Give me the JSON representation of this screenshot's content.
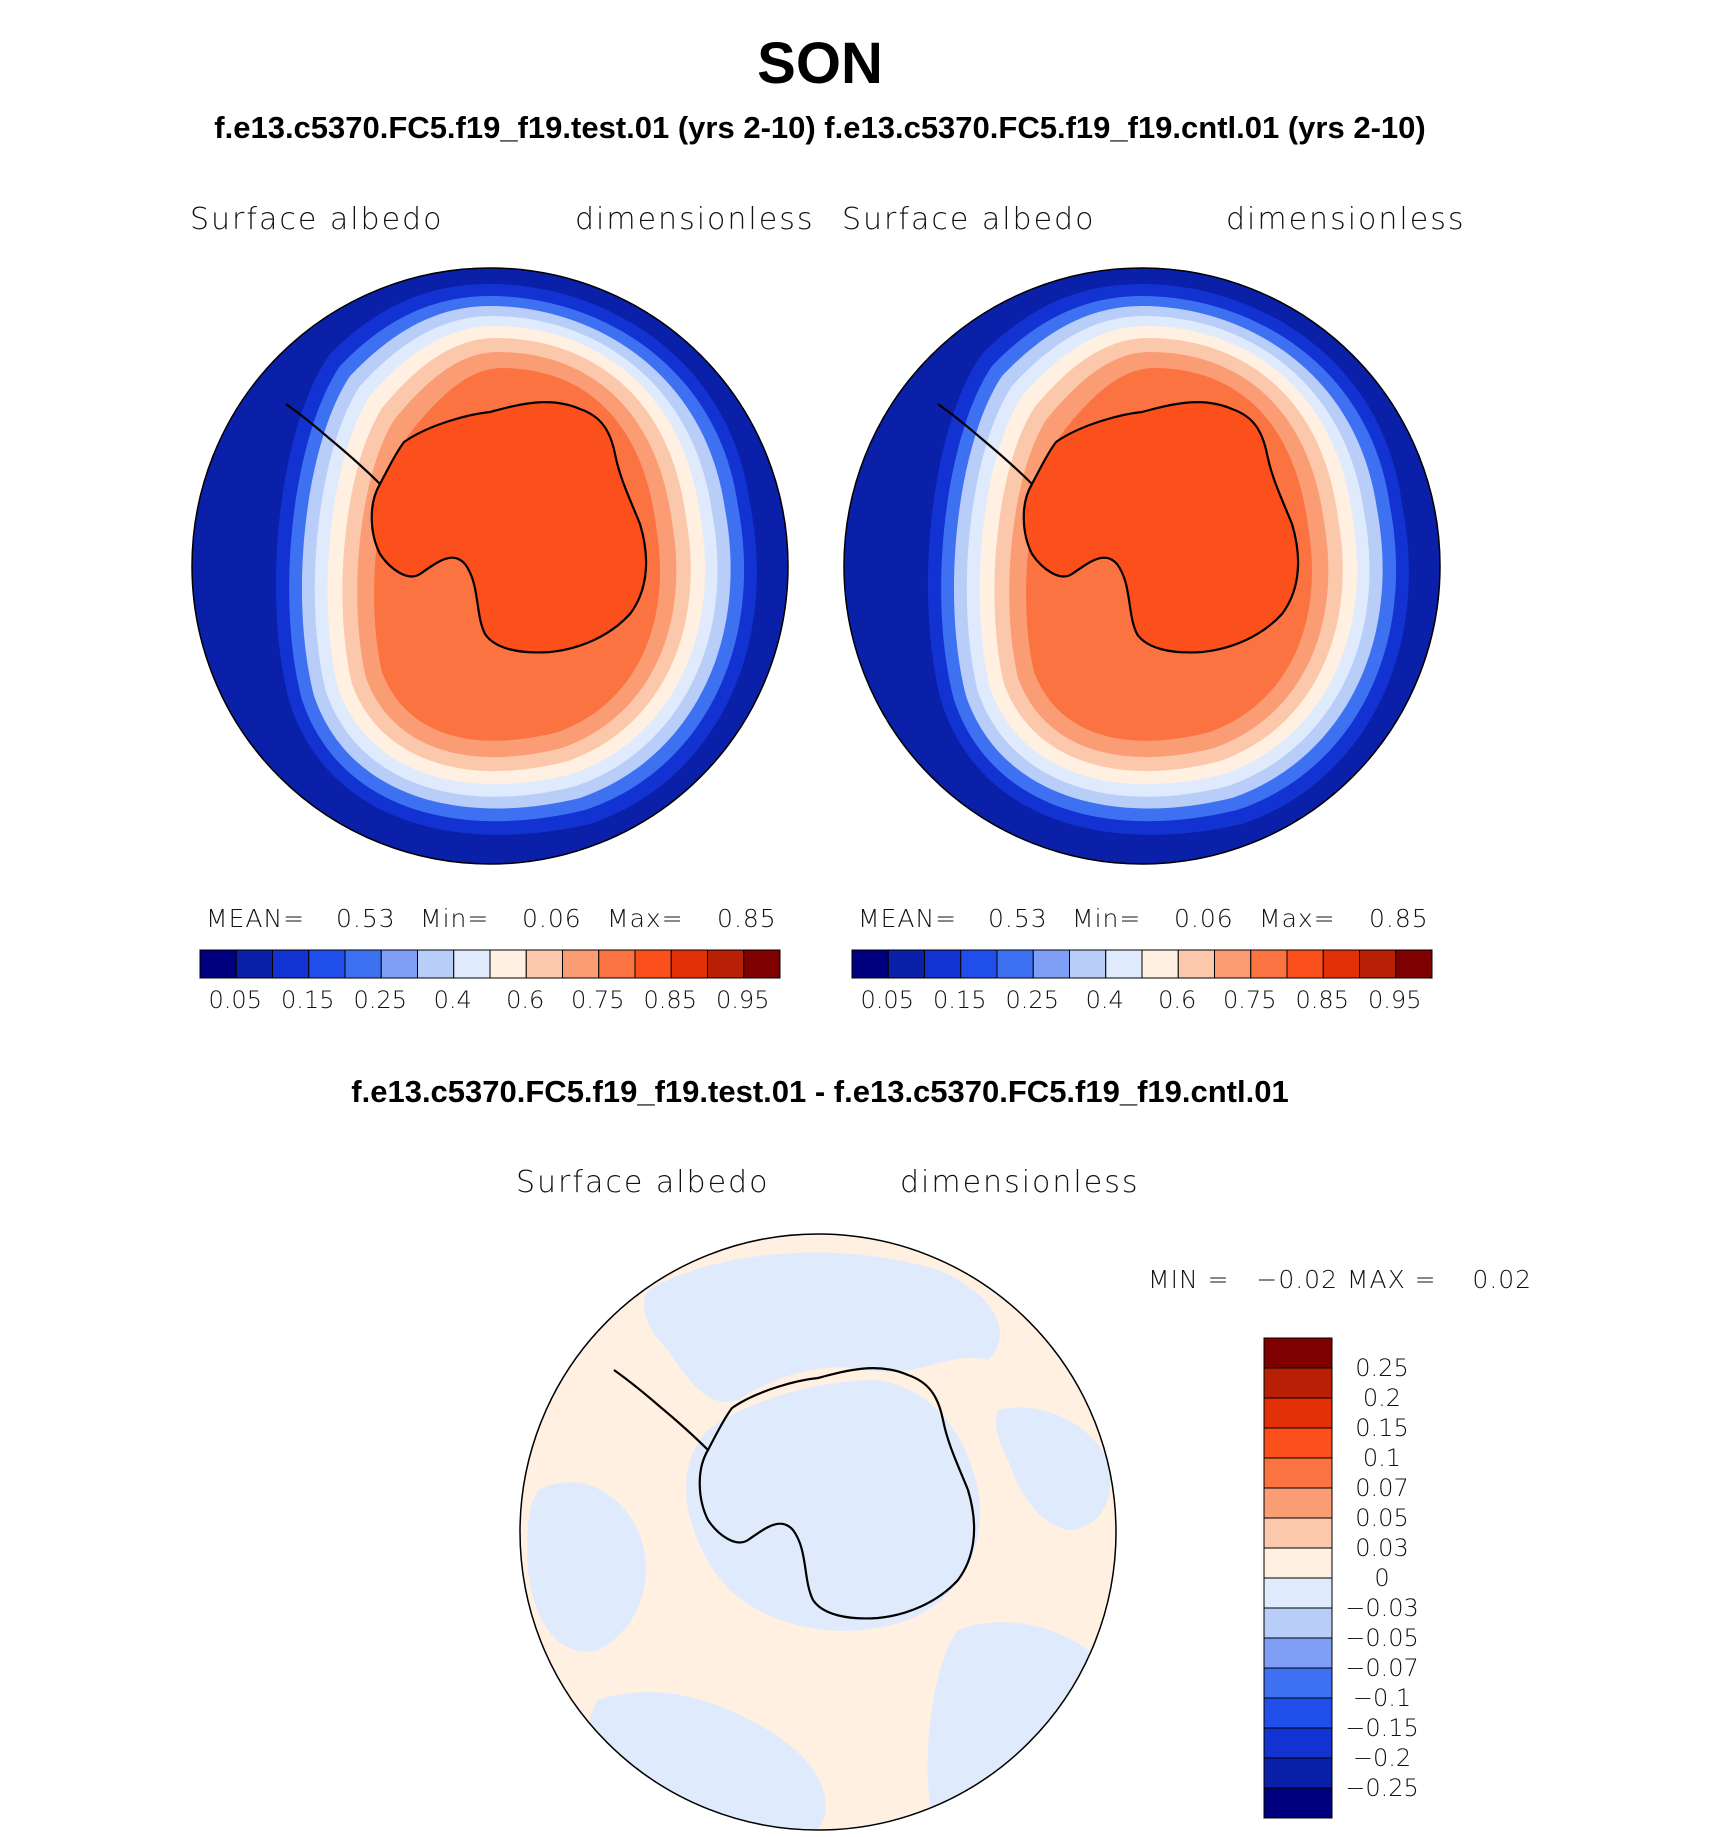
{
  "header": {
    "season": "SON",
    "subtitle": "f.e13.c5370.FC5.f19_f19.test.01 (yrs 2-10) f.e13.c5370.FC5.f19_f19.cntl.01 (yrs 2-10)",
    "diff_title": "f.e13.c5370.FC5.f19_f19.test.01 - f.e13.c5370.FC5.f19_f19.cntl.01"
  },
  "panels": [
    {
      "left_label": "Surface albedo",
      "right_label": "dimensionless",
      "mean_label": "MEAN=",
      "mean_value": "0.53",
      "min_label": "Min=",
      "min_value": "0.06",
      "max_label": "Max=",
      "max_value": "0.85"
    },
    {
      "left_label": "Surface albedo",
      "right_label": "dimensionless",
      "mean_label": "MEAN=",
      "mean_value": "0.53",
      "min_label": "Min=",
      "min_value": "0.06",
      "max_label": "Max=",
      "max_value": "0.85"
    }
  ],
  "diff_panel": {
    "left_label": "Surface albedo",
    "right_label": "dimensionless",
    "stats_text": "MIN =   −0.02 MAX =    0.02"
  },
  "chart_data": [
    {
      "type": "heatmap",
      "title": "f.e13.c5370.FC5.f19_f19.test.01 (yrs 2-10)",
      "variable": "Surface albedo",
      "units": "dimensionless",
      "projection": "south polar stereographic",
      "stats": {
        "mean": 0.53,
        "min": 0.06,
        "max": 0.85
      },
      "colorbar_levels": [
        0.05,
        0.1,
        0.15,
        0.2,
        0.25,
        0.3,
        0.4,
        0.5,
        0.6,
        0.7,
        0.75,
        0.8,
        0.85,
        0.9,
        0.95
      ],
      "colorbar_tick_labels": [
        "0.05",
        "0.15",
        "0.25",
        "0.4",
        "0.6",
        "0.75",
        "0.85",
        "0.95"
      ],
      "colorbar_colors": [
        "#00007f",
        "#0a20a8",
        "#1232d2",
        "#1f4eea",
        "#3e70f2",
        "#7e9ff5",
        "#b8cdf8",
        "#dfebfc",
        "#fff0e2",
        "#fcc8ac",
        "#fa9d75",
        "#fa7340",
        "#fb4f1c",
        "#e23106",
        "#b91f05",
        "#7f0000"
      ]
    },
    {
      "type": "heatmap",
      "title": "f.e13.c5370.FC5.f19_f19.cntl.01 (yrs 2-10)",
      "variable": "Surface albedo",
      "units": "dimensionless",
      "projection": "south polar stereographic",
      "stats": {
        "mean": 0.53,
        "min": 0.06,
        "max": 0.85
      },
      "colorbar_levels": [
        0.05,
        0.1,
        0.15,
        0.2,
        0.25,
        0.3,
        0.4,
        0.5,
        0.6,
        0.7,
        0.75,
        0.8,
        0.85,
        0.9,
        0.95
      ],
      "colorbar_tick_labels": [
        "0.05",
        "0.15",
        "0.25",
        "0.4",
        "0.6",
        "0.75",
        "0.85",
        "0.95"
      ],
      "colorbar_colors": [
        "#00007f",
        "#0a20a8",
        "#1232d2",
        "#1f4eea",
        "#3e70f2",
        "#7e9ff5",
        "#b8cdf8",
        "#dfebfc",
        "#fff0e2",
        "#fcc8ac",
        "#fa9d75",
        "#fa7340",
        "#fb4f1c",
        "#e23106",
        "#b91f05",
        "#7f0000"
      ]
    },
    {
      "type": "heatmap",
      "title": "f.e13.c5370.FC5.f19_f19.test.01 - f.e13.c5370.FC5.f19_f19.cntl.01",
      "variable": "Surface albedo",
      "units": "dimensionless",
      "projection": "south polar stereographic",
      "stats": {
        "min": -0.02,
        "max": 0.02
      },
      "colorbar_levels": [
        0.25,
        0.2,
        0.15,
        0.1,
        0.07,
        0.05,
        0.03,
        0,
        -0.03,
        -0.05,
        -0.07,
        -0.1,
        -0.15,
        -0.2,
        -0.25
      ],
      "colorbar_tick_labels": [
        "0.25",
        "0.2",
        "0.15",
        "0.1",
        "0.07",
        "0.05",
        "0.03",
        "0",
        "−0.03",
        "−0.05",
        "−0.07",
        "−0.1",
        "−0.15",
        "−0.2",
        "−0.25"
      ],
      "colorbar_colors": [
        "#7f0000",
        "#b91f05",
        "#e23106",
        "#fb4f1c",
        "#fa7340",
        "#fa9d75",
        "#fcc8ac",
        "#fff0e2",
        "#dfebfc",
        "#b8cdf8",
        "#7e9ff5",
        "#3e70f2",
        "#1f4eea",
        "#1232d2",
        "#0a20a8",
        "#00007f"
      ]
    }
  ]
}
